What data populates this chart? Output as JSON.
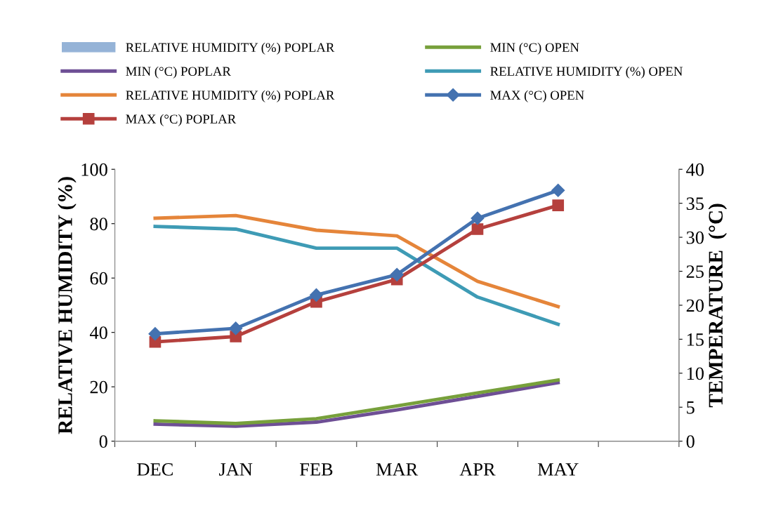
{
  "chart_data": {
    "type": "line",
    "categories": [
      "DEC",
      "JAN",
      "FEB",
      "MAR",
      "APR",
      "MAY",
      null
    ],
    "ylabel": "RELATIVE HUMIDITY (%)",
    "y2label": "TEMPERATURE  (°C)",
    "ylim": [
      0,
      100
    ],
    "yticks": [
      0,
      20,
      40,
      60,
      80,
      100
    ],
    "y2lim": [
      0,
      40
    ],
    "y2ticks": [
      0,
      5,
      10,
      15,
      20,
      25,
      30,
      35,
      40
    ],
    "grid": false,
    "legend": "top",
    "marker": "none",
    "line_style": "solid",
    "series": [
      {
        "name": "RELATIVE HUMIDITY (%) POPLAR",
        "type": "bar",
        "color": "#95b3d7",
        "values": [
          null,
          null,
          null,
          null,
          null,
          null,
          null
        ]
      },
      {
        "name": "MIN (°C) OPEN",
        "color": "#77a03b",
        "axis": "y2",
        "values": [
          3.0,
          2.6,
          3.3,
          5.2,
          7.1,
          9.0,
          null
        ]
      },
      {
        "name": "MIN (°C) POPLAR",
        "color": "#6e4f95",
        "axis": "y2",
        "values": [
          2.5,
          2.2,
          2.8,
          4.6,
          6.6,
          8.6,
          null
        ]
      },
      {
        "name": "RELATIVE HUMIDITY (%) OPEN",
        "color": "#3e9bb5",
        "values": [
          79,
          78,
          71,
          71,
          53,
          43,
          null
        ]
      },
      {
        "name": "RELATIVE HUMIDITY (%) POPLAR",
        "color": "#e5853a",
        "values": [
          82,
          83,
          77.6,
          75.5,
          58.8,
          49.5,
          null
        ]
      },
      {
        "name": "MAX (°C) OPEN",
        "color": "#4472b0",
        "axis": "y2",
        "marker": "diamond",
        "values": [
          15.8,
          16.6,
          21.5,
          24.5,
          32.8,
          36.9,
          null
        ]
      },
      {
        "name": "MAX (°C) POPLAR",
        "color": "#b5403d",
        "axis": "y2",
        "marker": "square",
        "values": [
          14.6,
          15.4,
          20.5,
          23.8,
          31.2,
          34.7,
          null
        ]
      }
    ]
  }
}
